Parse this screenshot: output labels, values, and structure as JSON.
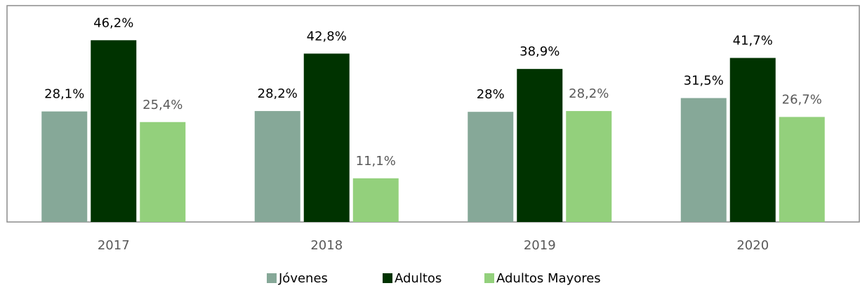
{
  "chart_data": {
    "type": "bar",
    "categories": [
      "2017",
      "2018",
      "2019",
      "2020"
    ],
    "series": [
      {
        "name": "Jóvenes",
        "color": "#86a898",
        "values": [
          28.1,
          28.2,
          28,
          31.5
        ],
        "value_labels": [
          "28,1%",
          "28,2%",
          "28%",
          "31,5%"
        ]
      },
      {
        "name": "Adultos",
        "color": "#003300",
        "values": [
          46.2,
          42.8,
          38.9,
          41.7
        ],
        "value_labels": [
          "46,2%",
          "42,8%",
          "38,9%",
          "41,7%"
        ]
      },
      {
        "name": "Adultos Mayores",
        "color": "#93d07c",
        "values": [
          25.4,
          11.1,
          28.2,
          26.7
        ],
        "value_labels": [
          "25,4%",
          "11,1%",
          "28,2%",
          "26,7%"
        ]
      }
    ],
    "ylim": [
      0,
      55
    ],
    "legend": "bottom"
  }
}
